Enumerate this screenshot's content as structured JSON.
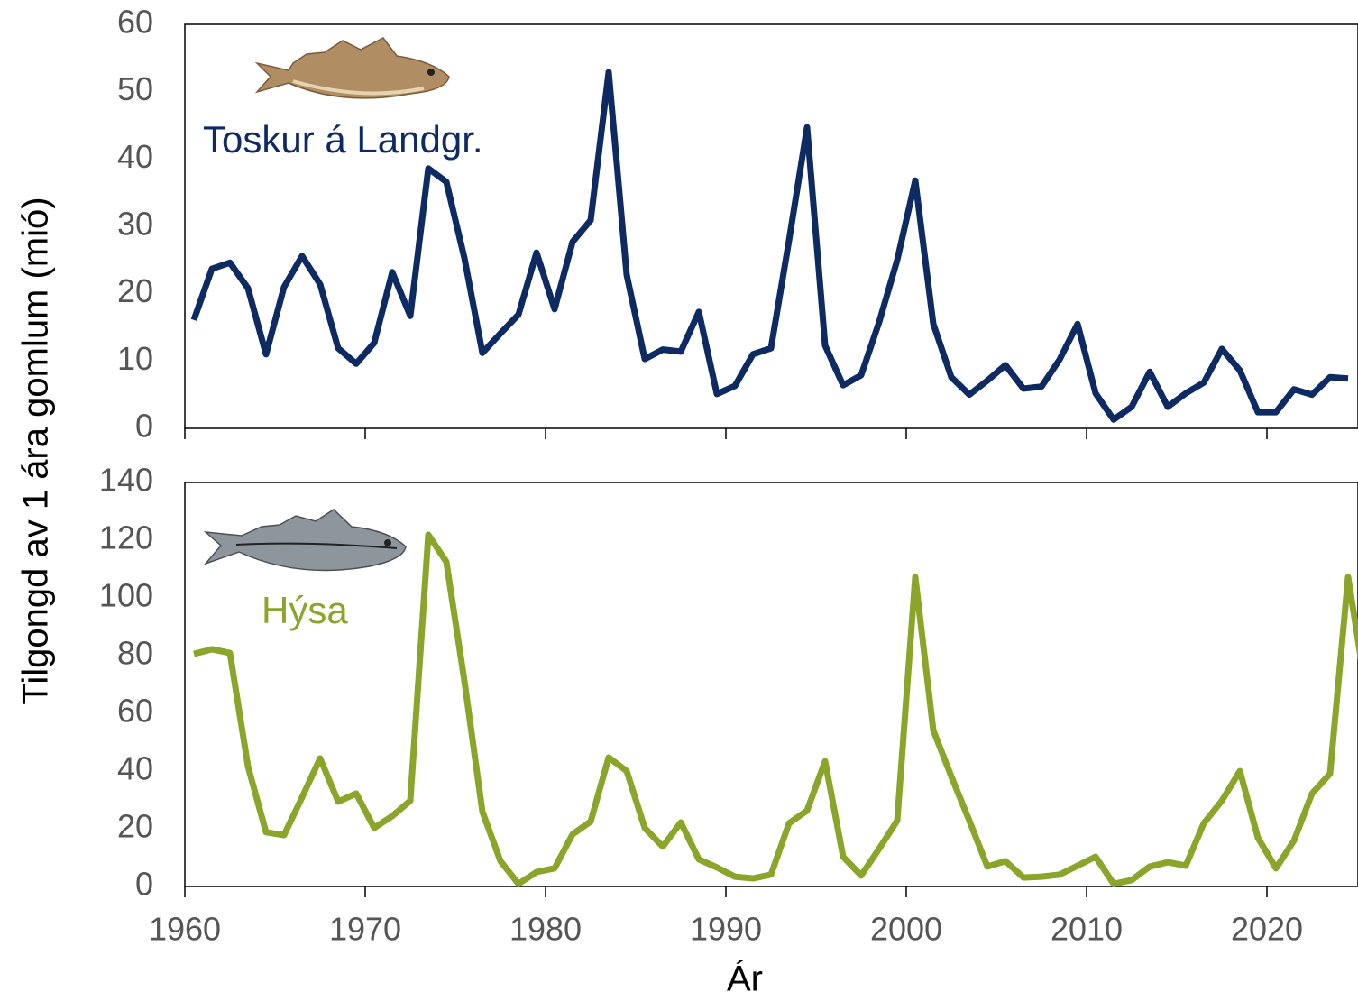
{
  "y_axis_label": "Tilgongd av 1 ára gomlum (mió)",
  "x_axis_label": "Ár",
  "chart_data": [
    {
      "type": "line",
      "x": [
        1960,
        1961,
        1962,
        1963,
        1964,
        1965,
        1966,
        1967,
        1968,
        1969,
        1970,
        1971,
        1972,
        1973,
        1974,
        1975,
        1976,
        1977,
        1978,
        1979,
        1980,
        1981,
        1982,
        1983,
        1984,
        1985,
        1986,
        1987,
        1988,
        1989,
        1990,
        1991,
        1992,
        1993,
        1994,
        1995,
        1996,
        1997,
        1998,
        1999,
        2000,
        2001,
        2002,
        2003,
        2004,
        2005,
        2006,
        2007,
        2008,
        2009,
        2010,
        2011,
        2012,
        2013,
        2014,
        2015,
        2016,
        2017,
        2018,
        2019,
        2020,
        2021,
        2022,
        2023,
        2024
      ],
      "series": [
        {
          "name": "Toskur á Landgr.",
          "color": "#0d2a63",
          "values": [
            16.1,
            23.7,
            24.6,
            20.8,
            11,
            21,
            25.6,
            21.4,
            11.9,
            9.6,
            12.7,
            23.2,
            16.7,
            38.6,
            36.6,
            25.3,
            11.2,
            14.1,
            16.9,
            26.1,
            17.7,
            27.7,
            30.9,
            52.9,
            22.8,
            10.3,
            11.7,
            11.4,
            17.3,
            5.1,
            6.3,
            11,
            11.9,
            27.9,
            44.7,
            12.3,
            6.4,
            7.9,
            15.8,
            25,
            36.8,
            15.5,
            7.6,
            5,
            7.1,
            9.4,
            5.9,
            6.2,
            10.2,
            15.5,
            5.2,
            1.3,
            3.2,
            8.4,
            3.2,
            5.2,
            6.8,
            11.8,
            8.6,
            2.4,
            2.4,
            5.8,
            5,
            7.6,
            7.4
          ]
        }
      ],
      "xlim": [
        1960,
        2025
      ],
      "xticks": [
        1960,
        1970,
        1980,
        1990,
        2000,
        2010,
        2020
      ],
      "ylim": [
        0,
        60
      ],
      "yticks": [
        0,
        10,
        20,
        30,
        40,
        50,
        60
      ]
    },
    {
      "type": "line",
      "x": [
        1960,
        1961,
        1962,
        1963,
        1964,
        1965,
        1966,
        1967,
        1968,
        1969,
        1970,
        1971,
        1972,
        1973,
        1974,
        1975,
        1976,
        1977,
        1978,
        1979,
        1980,
        1981,
        1982,
        1983,
        1984,
        1985,
        1986,
        1987,
        1988,
        1989,
        1990,
        1991,
        1992,
        1993,
        1994,
        1995,
        1996,
        1997,
        1998,
        1999,
        2000,
        2001,
        2002,
        2003,
        2004,
        2005,
        2006,
        2007,
        2008,
        2009,
        2010,
        2011,
        2012,
        2013,
        2014,
        2015,
        2016,
        2017,
        2018,
        2019,
        2020,
        2021,
        2022,
        2023,
        2024,
        2025
      ],
      "series": [
        {
          "name": "Hýsa",
          "color": "#8aa52a",
          "values": [
            80.6,
            82.2,
            80.9,
            41.6,
            18.8,
            17.8,
            30.9,
            44.4,
            29.4,
            32.2,
            20.3,
            24.4,
            29.7,
            121.9,
            112.5,
            71.3,
            25.9,
            8.8,
            0.9,
            5,
            6.3,
            18.1,
            22.5,
            44.7,
            40,
            20.3,
            13.8,
            22.2,
            9.4,
            6.6,
            3.4,
            2.8,
            4.1,
            21.9,
            26.3,
            43.4,
            10.3,
            3.8,
            13.1,
            22.8,
            107.2,
            54.1,
            38.1,
            22.8,
            6.9,
            8.8,
            3.1,
            3.4,
            4.1,
            7.2,
            10.3,
            0.9,
            2.2,
            6.9,
            8.4,
            7.2,
            21.9,
            29.7,
            40,
            16.9,
            6.3,
            15.9,
            32.2,
            39.1,
            107.2,
            67.5
          ]
        }
      ],
      "xlim": [
        1960,
        2025
      ],
      "xticks": [
        1960,
        1970,
        1980,
        1990,
        2000,
        2010,
        2020
      ],
      "ylim": [
        0,
        140
      ],
      "yticks": [
        0,
        20,
        40,
        60,
        80,
        100,
        120,
        140
      ]
    }
  ]
}
